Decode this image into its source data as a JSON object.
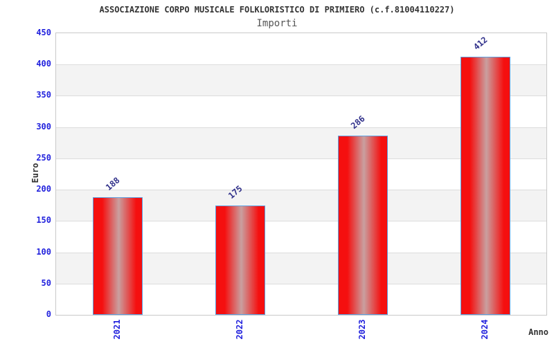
{
  "chart_data": {
    "type": "bar",
    "title": "ASSOCIAZIONE CORPO MUSICALE FOLKLORISTICO DI PRIMIERO (c.f.81004110227)",
    "subtitle": "Importi",
    "xlabel": "Anno",
    "ylabel": "Euro",
    "categories": [
      "2021",
      "2022",
      "2023",
      "2024"
    ],
    "values": [
      188,
      175,
      286,
      412
    ],
    "ylim": [
      0,
      450
    ],
    "yticks": [
      0,
      50,
      100,
      150,
      200,
      250,
      300,
      350,
      400,
      450
    ],
    "grid": true,
    "legend_position": "none",
    "value_labels_shown": true
  },
  "colors": {
    "title": "#333333",
    "subtitle": "#555555",
    "axis_label": "#333333",
    "tick_label": "#2222dd",
    "value_label": "#30308a",
    "bar_red": "#f50f0f",
    "bar_center": "#c9a0a0",
    "bar_border": "#5c9fe0",
    "band_gray": "#f3f3f3",
    "gridline": "#dcdcdc",
    "frame": "#c8c8c8"
  }
}
